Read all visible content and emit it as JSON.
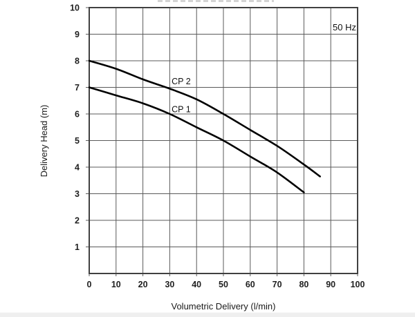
{
  "page": {
    "annotation_frequency": "50 Hz"
  },
  "chart_data": {
    "type": "line",
    "title": "",
    "xlabel": "Volumetric Delivery (l/min)",
    "ylabel": "Delivery Head (m)",
    "xlim": [
      0,
      100
    ],
    "ylim": [
      0,
      10
    ],
    "x_ticks": [
      0,
      10,
      20,
      30,
      40,
      50,
      60,
      70,
      80,
      90,
      100
    ],
    "y_ticks": [
      1,
      2,
      3,
      4,
      5,
      6,
      7,
      8,
      9,
      10
    ],
    "grid": true,
    "legend_position": "none",
    "annotation": "50 Hz",
    "grid_color": "#595959",
    "border_color": "#404040",
    "curve_color": "#000000",
    "series": [
      {
        "name": "CP 2",
        "points": [
          [
            0,
            8.0
          ],
          [
            10,
            7.7
          ],
          [
            20,
            7.3
          ],
          [
            30,
            6.95
          ],
          [
            40,
            6.55
          ],
          [
            50,
            6.0
          ],
          [
            60,
            5.4
          ],
          [
            70,
            4.8
          ],
          [
            80,
            4.1
          ],
          [
            86,
            3.65
          ]
        ],
        "label_pos": [
          30.7,
          7.12
        ]
      },
      {
        "name": "CP 1",
        "points": [
          [
            0,
            7.0
          ],
          [
            10,
            6.7
          ],
          [
            20,
            6.4
          ],
          [
            30,
            6.0
          ],
          [
            40,
            5.5
          ],
          [
            50,
            5.0
          ],
          [
            60,
            4.4
          ],
          [
            70,
            3.8
          ],
          [
            80,
            3.05
          ]
        ],
        "label_pos": [
          30.7,
          6.06
        ]
      }
    ]
  }
}
